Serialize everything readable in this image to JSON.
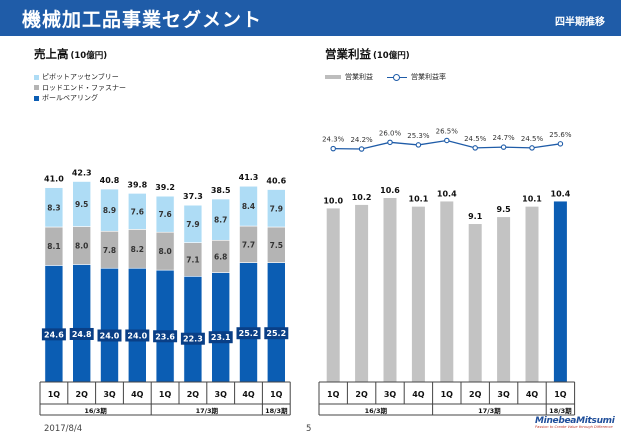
{
  "header": {
    "title": "機械加工品事業セグメント",
    "subtitle": "四半期推移"
  },
  "left_title": "売上高",
  "left_unit": "(10億円)",
  "right_title": "営業利益",
  "right_unit": "(10億円)",
  "colors": {
    "pivot": "#aedcf5",
    "rod": "#b4b4b4",
    "ball": "#0b5db3",
    "op": "#c3c3c3",
    "op_last": "#0b5db3",
    "line": "#1f5ca8",
    "header": "#1f5ca8"
  },
  "legend_left": [
    "ピボットアッセンブリー",
    "ロッドエンド・ファスナー",
    "ボールベアリング"
  ],
  "legend_right": {
    "bar": "営業利益",
    "line": "営業利益率"
  },
  "footer": {
    "date": "2017/8/4",
    "page": "5"
  },
  "logo": {
    "name": "MinebeaMitsumi",
    "tagline": "Passion to Create Value through Difference"
  },
  "chart_data": [
    {
      "type": "bar",
      "stacked": true,
      "categories": [
        "1Q",
        "2Q",
        "3Q",
        "4Q",
        "1Q",
        "2Q",
        "3Q",
        "4Q",
        "1Q"
      ],
      "periods": [
        {
          "label": "16/3期",
          "count": 4
        },
        {
          "label": "17/3期",
          "count": 4
        },
        {
          "label": "18/3期",
          "count": 1
        }
      ],
      "series": [
        {
          "name": "ボールベアリング",
          "values": [
            24.6,
            24.8,
            24.0,
            24.0,
            23.6,
            22.3,
            23.1,
            25.2,
            25.2
          ]
        },
        {
          "name": "ロッドエンド・ファスナー",
          "values": [
            8.1,
            8.0,
            7.8,
            8.2,
            8.0,
            7.1,
            6.8,
            7.7,
            7.5
          ]
        },
        {
          "name": "ピボットアッセンブリー",
          "values": [
            8.3,
            9.5,
            8.9,
            7.6,
            7.6,
            7.9,
            8.7,
            8.4,
            7.9
          ]
        }
      ],
      "totals": [
        41.0,
        42.3,
        40.8,
        39.8,
        39.2,
        37.3,
        38.5,
        41.3,
        40.6
      ]
    },
    {
      "type": "bar",
      "categories": [
        "1Q",
        "2Q",
        "3Q",
        "4Q",
        "1Q",
        "2Q",
        "3Q",
        "4Q",
        "1Q"
      ],
      "periods": [
        {
          "label": "16/3期",
          "count": 4
        },
        {
          "label": "17/3期",
          "count": 4
        },
        {
          "label": "18/3期",
          "count": 1
        }
      ],
      "series": [
        {
          "name": "営業利益",
          "type": "bar",
          "values": [
            10.0,
            10.2,
            10.6,
            10.1,
            10.4,
            9.1,
            9.5,
            10.1,
            10.4
          ]
        },
        {
          "name": "営業利益率",
          "type": "line",
          "values": [
            24.3,
            24.2,
            26.0,
            25.3,
            26.5,
            24.5,
            24.7,
            24.5,
            25.6
          ],
          "unit": "%"
        }
      ]
    }
  ]
}
